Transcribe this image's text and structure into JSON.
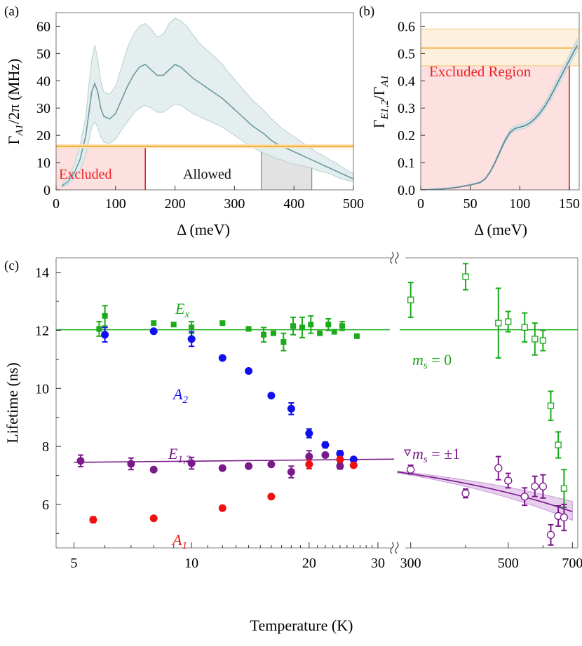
{
  "chart_data": [
    {
      "panel": "(a)",
      "type": "line",
      "ylabel_main": "Γ",
      "ylabel_sub": "A1",
      "ylabel_rest": "/2π (MHz)",
      "xlabel": "Δ (meV)",
      "xlim": [
        0,
        500
      ],
      "ylim": [
        0,
        65
      ],
      "x_ticks": [
        "0",
        "100",
        "200",
        "300",
        "400",
        "500"
      ],
      "y_ticks": [
        "0",
        "10",
        "20",
        "30",
        "40",
        "50",
        "60"
      ],
      "annotations": {
        "excluded": "Excluded",
        "allowed": "Allowed"
      },
      "excluded_max_delta": 150,
      "allowed_range": [
        345,
        430
      ],
      "threshold": {
        "value": 16,
        "band": [
          15.3,
          16.7
        ]
      },
      "series": {
        "x": [
          10,
          20,
          30,
          40,
          50,
          55,
          60,
          65,
          70,
          75,
          80,
          90,
          100,
          110,
          120,
          130,
          140,
          150,
          160,
          170,
          180,
          190,
          200,
          210,
          220,
          230,
          240,
          250,
          260,
          270,
          280,
          290,
          300,
          310,
          320,
          330,
          340,
          350,
          360,
          370,
          380,
          390,
          400,
          410,
          420,
          430,
          440,
          450,
          460,
          470,
          480,
          490,
          500
        ],
        "mean": [
          1.5,
          3,
          6,
          11,
          20,
          28,
          36,
          39,
          36,
          30,
          27,
          26,
          28,
          33,
          38,
          42,
          45,
          46,
          44,
          42,
          42,
          44,
          46,
          45,
          43,
          41,
          39.5,
          38,
          36.5,
          35,
          33.5,
          31.5,
          29.5,
          27.5,
          25.5,
          23.5,
          22,
          20.5,
          18.5,
          17,
          16,
          15,
          14,
          13,
          12,
          11,
          10,
          9,
          8,
          7,
          6,
          5,
          4
        ],
        "upper": [
          2,
          4.5,
          9,
          16,
          27,
          38,
          48,
          53,
          48,
          40,
          36,
          35,
          38,
          45,
          52,
          57,
          60,
          61,
          59,
          56,
          57,
          61,
          63,
          62,
          60,
          57,
          54,
          52,
          50,
          48,
          46,
          43,
          40.5,
          38,
          35.5,
          33,
          31,
          29,
          26.5,
          24.5,
          22.5,
          21,
          19.5,
          18,
          16.5,
          15,
          13.5,
          12.5,
          11,
          10,
          8.5,
          7,
          6
        ],
        "lower": [
          1,
          2,
          4,
          7,
          13,
          18,
          23,
          25,
          23,
          19.5,
          17.5,
          17,
          18.5,
          22,
          25,
          28,
          30,
          31,
          30,
          28.5,
          28.5,
          30,
          31.5,
          31,
          29.5,
          28,
          27,
          26,
          25,
          24,
          23,
          21.5,
          20,
          18.5,
          17,
          15.5,
          14.5,
          13.5,
          12.5,
          11.5,
          11,
          10,
          9.5,
          9,
          8.5,
          8,
          7,
          6.5,
          6,
          5,
          4,
          3.5,
          3
        ]
      }
    },
    {
      "panel": "(b)",
      "type": "line",
      "ylabel_main": "Γ",
      "ylabel_sub": "E1,2",
      "ylabel_slash": "/Γ",
      "ylabel_sub2": "A1",
      "xlabel": "Δ (meV)",
      "xlim": [
        0,
        160
      ],
      "ylim": [
        0,
        0.65
      ],
      "x_ticks": [
        "0",
        "50",
        "100",
        "150"
      ],
      "y_ticks": [
        "0.0",
        "0.1",
        "0.2",
        "0.3",
        "0.4",
        "0.5",
        "0.6"
      ],
      "annotation": "Excluded Region",
      "excluded_max_delta": 150,
      "threshold": {
        "value": 0.52,
        "band": [
          0.455,
          0.59
        ]
      },
      "series": {
        "x": [
          0,
          10,
          20,
          30,
          40,
          50,
          55,
          60,
          65,
          70,
          75,
          80,
          85,
          90,
          95,
          100,
          105,
          110,
          115,
          120,
          125,
          130,
          135,
          140,
          145,
          150,
          155,
          158
        ],
        "mean": [
          0,
          0.001,
          0.003,
          0.006,
          0.011,
          0.018,
          0.022,
          0.027,
          0.04,
          0.065,
          0.1,
          0.14,
          0.18,
          0.21,
          0.225,
          0.23,
          0.235,
          0.245,
          0.26,
          0.28,
          0.305,
          0.335,
          0.37,
          0.405,
          0.44,
          0.475,
          0.51,
          0.53
        ]
      }
    },
    {
      "panel": "(c)",
      "type": "scatter",
      "ylabel": "Lifetime  (ns)",
      "xlabel": "Temperature (K)",
      "ylim": [
        4.5,
        14.5
      ],
      "y_ticks": [
        "6",
        "8",
        "10",
        "12",
        "14"
      ],
      "x_ticks_low": [
        "5",
        "10",
        "20",
        "30"
      ],
      "x_ticks_high": [
        "300",
        "500",
        "700"
      ],
      "xlim_low": [
        4.5,
        33
      ],
      "xlim_high": [
        275,
        720
      ],
      "x_scale": "log",
      "colors": {
        "Ex": "#1aaa1a",
        "A2": "#1010ee",
        "E12": "#7a1a8a",
        "A1": "#ee1111",
        "A1line": "#dd2222"
      },
      "labels": {
        "Ex": {
          "main": "E",
          "sub": "x"
        },
        "A2": {
          "main": "A",
          "sub": "2"
        },
        "E12": {
          "main": "E",
          "sub": "1,2"
        },
        "A1": {
          "main": "A",
          "sub": "1"
        },
        "ms0": "m_s = 0",
        "ms1": "m_s = ±1"
      },
      "reference_line_Ex": 12.02,
      "fit_E12": {
        "x": [
          5,
          33
        ],
        "y": [
          7.45,
          7.56
        ]
      },
      "fit_ms1": {
        "x": [
          280,
          700
        ],
        "y": [
          7.12,
          5.75
        ],
        "band_upper": [
          7.15,
          6.1
        ],
        "band_lower": [
          7.08,
          5.45
        ]
      },
      "series": [
        {
          "name": "Ex",
          "marker": "square",
          "points": [
            [
              5.8,
              12.05,
              0.25
            ],
            [
              6.0,
              12.5,
              0.35
            ],
            [
              8.0,
              12.25,
              0
            ],
            [
              9.0,
              12.2,
              0
            ],
            [
              10.0,
              12.1,
              0.2
            ],
            [
              12.0,
              12.25,
              0
            ],
            [
              14.0,
              12.05,
              0
            ],
            [
              15.3,
              11.85,
              0.25
            ],
            [
              16.2,
              11.9,
              0
            ],
            [
              17.2,
              11.6,
              0.3
            ],
            [
              18.2,
              12.15,
              0.3
            ],
            [
              19.2,
              12.1,
              0.35
            ],
            [
              20.2,
              12.2,
              0.3
            ],
            [
              21.3,
              11.9,
              0
            ],
            [
              22.4,
              12.2,
              0.2
            ],
            [
              23.2,
              11.95,
              0
            ],
            [
              24.3,
              12.15,
              0.15
            ],
            [
              26.5,
              11.8,
              0
            ]
          ]
        },
        {
          "name": "A2",
          "marker": "circle",
          "points": [
            [
              6.0,
              11.85,
              0.25
            ],
            [
              8.0,
              11.97,
              0
            ],
            [
              10.0,
              11.7,
              0.25
            ],
            [
              12.0,
              11.05,
              0
            ],
            [
              14.0,
              10.6,
              0
            ],
            [
              16.0,
              9.75,
              0
            ],
            [
              18.0,
              9.3,
              0.2
            ],
            [
              20.0,
              8.45,
              0.15
            ],
            [
              22.0,
              8.05,
              0.1
            ],
            [
              24.0,
              7.75,
              0.1
            ],
            [
              26.0,
              7.55,
              0
            ]
          ]
        },
        {
          "name": "E12",
          "marker": "circle",
          "points": [
            [
              5.2,
              7.5,
              0.2
            ],
            [
              7.0,
              7.4,
              0.2
            ],
            [
              8.0,
              7.2,
              0
            ],
            [
              10.0,
              7.42,
              0.2
            ],
            [
              12.0,
              7.25,
              0
            ],
            [
              14.0,
              7.32,
              0
            ],
            [
              16.0,
              7.38,
              0
            ],
            [
              18.0,
              7.12,
              0.2
            ],
            [
              20.0,
              7.65,
              0.2
            ],
            [
              22.0,
              7.7,
              0
            ],
            [
              24.0,
              7.32,
              0.1
            ]
          ]
        },
        {
          "name": "A1",
          "marker": "circle",
          "points": [
            [
              5.6,
              5.47,
              0.1
            ],
            [
              8.0,
              5.52,
              0
            ],
            [
              12.0,
              5.87,
              0
            ],
            [
              16.0,
              6.27,
              0
            ],
            [
              20.0,
              7.38,
              0.15
            ],
            [
              24.0,
              7.55,
              0
            ],
            [
              26.0,
              7.35,
              0
            ]
          ]
        },
        {
          "name": "ms0",
          "marker": "open-square",
          "points": [
            [
              300,
              13.05,
              0.6
            ],
            [
              400,
              13.85,
              0.45
            ],
            [
              475,
              12.25,
              1.2
            ],
            [
              500,
              12.3,
              0.35
            ],
            [
              545,
              12.1,
              0.5
            ],
            [
              575,
              11.7,
              0.55
            ],
            [
              600,
              11.65,
              0.35
            ],
            [
              625,
              9.4,
              0.5
            ],
            [
              650,
              8.05,
              0.45
            ],
            [
              670,
              6.55,
              0.65
            ]
          ]
        },
        {
          "name": "ms1",
          "marker": "open-circle",
          "points": [
            [
              300,
              7.2,
              0.15
            ],
            [
              400,
              6.38,
              0.15
            ],
            [
              475,
              7.25,
              0.4
            ],
            [
              500,
              6.82,
              0.25
            ],
            [
              545,
              6.27,
              0.3
            ],
            [
              575,
              6.62,
              0.35
            ],
            [
              600,
              6.62,
              0.4
            ],
            [
              625,
              4.95,
              0.35
            ],
            [
              650,
              5.6,
              0.35
            ],
            [
              670,
              5.55,
              0.45
            ]
          ]
        },
        {
          "name": "ms1-outlier",
          "marker": "open-triangle",
          "points": [
            [
              295,
              7.78,
              0
            ]
          ]
        }
      ]
    }
  ]
}
